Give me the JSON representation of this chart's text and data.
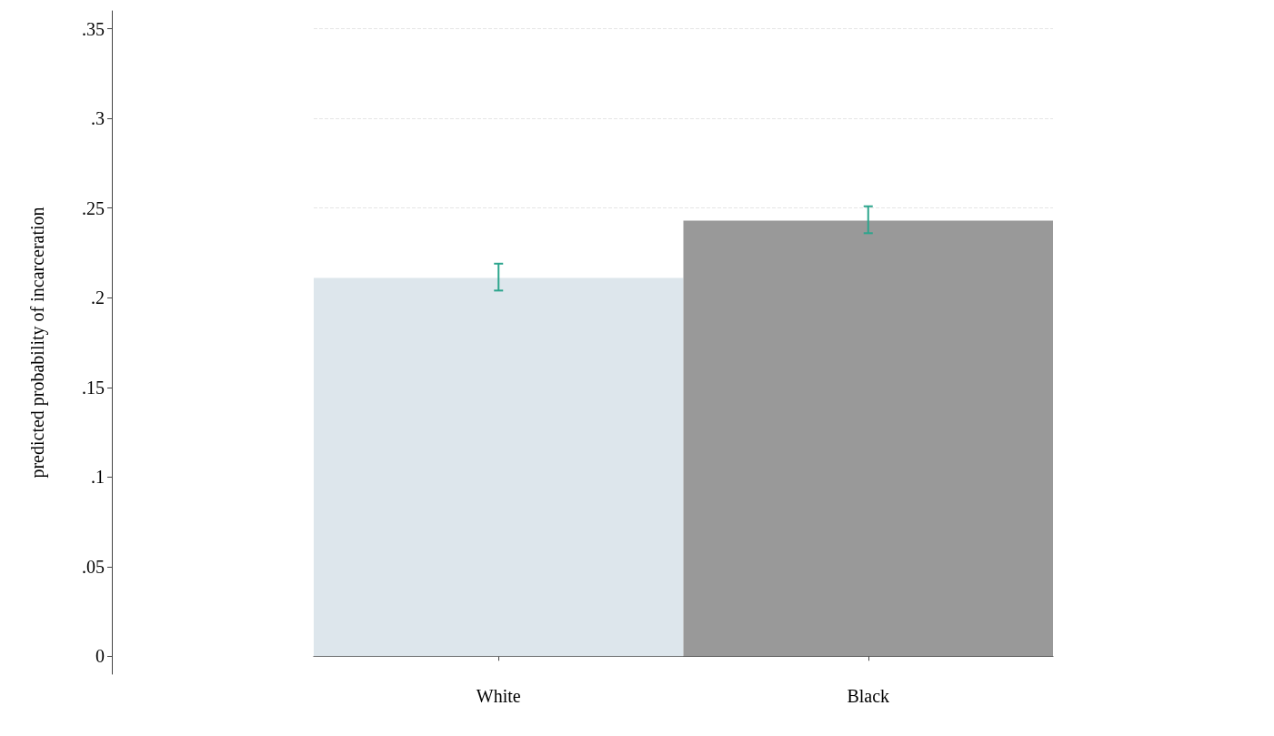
{
  "chart_data": {
    "type": "bar",
    "ylabel": "predicted probability of incarceration",
    "categories": [
      "White",
      "Black"
    ],
    "values": [
      0.211,
      0.243
    ],
    "colors": [
      "#dde6ec",
      "#999999"
    ],
    "errors": [
      [
        0.204,
        0.219
      ],
      [
        0.236,
        0.251
      ]
    ],
    "ylim": [
      -0.01,
      0.36
    ],
    "yticks": [
      {
        "value": 0,
        "label": "0"
      },
      {
        "value": 0.05,
        "label": ".05"
      },
      {
        "value": 0.1,
        "label": ".1"
      },
      {
        "value": 0.15,
        "label": ".15"
      },
      {
        "value": 0.2,
        "label": ".2"
      },
      {
        "value": 0.25,
        "label": ".25"
      },
      {
        "value": 0.3,
        "label": ".3"
      },
      {
        "value": 0.35,
        "label": ".35"
      }
    ],
    "grid": "y"
  }
}
